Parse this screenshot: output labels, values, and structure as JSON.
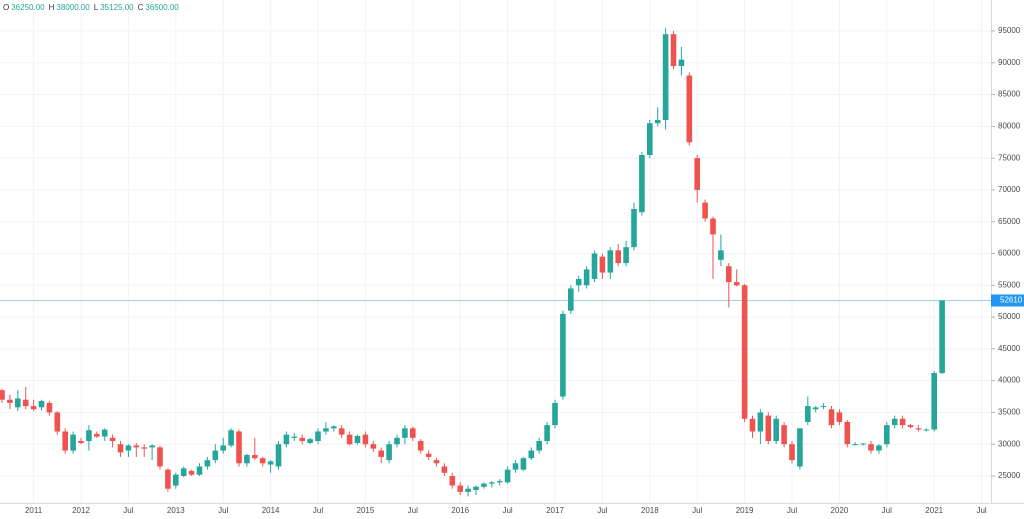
{
  "chart_data": {
    "type": "candlestick",
    "header": [
      {
        "key": "O",
        "value": "36250.00"
      },
      {
        "key": "H",
        "value": "38000.00"
      },
      {
        "key": "L",
        "value": "35125.00"
      },
      {
        "key": "C",
        "value": "36500.00"
      }
    ],
    "categories": [
      null,
      null,
      null,
      null,
      "2011",
      null,
      null,
      null,
      null,
      null,
      "2012",
      null,
      null,
      null,
      null,
      null,
      "Jul",
      null,
      null,
      null,
      null,
      null,
      "2013",
      null,
      null,
      null,
      null,
      null,
      "Jul",
      null,
      null,
      null,
      null,
      null,
      "2014",
      null,
      null,
      null,
      null,
      null,
      "Jul",
      null,
      null,
      null,
      null,
      null,
      "2015",
      null,
      null,
      null,
      null,
      null,
      "Jul",
      null,
      null,
      null,
      null,
      null,
      "2016",
      null,
      null,
      null,
      null,
      null,
      "Jul",
      null,
      null,
      null,
      null,
      null,
      "2017",
      null,
      null,
      null,
      null,
      null,
      "Jul",
      null,
      null,
      null,
      null,
      null,
      "2018",
      null,
      null,
      null,
      null,
      null,
      "Jul",
      null,
      null,
      null,
      null,
      null,
      "2019",
      null,
      null,
      null,
      null,
      null,
      "Jul",
      null,
      null,
      null,
      null,
      null,
      "2020",
      null,
      null,
      null,
      null,
      null,
      "Jul",
      null,
      null,
      null,
      null,
      null,
      "2021",
      null,
      null,
      null,
      null,
      null,
      "Jul"
    ],
    "open": [
      38500,
      37000,
      35800,
      37000,
      36000,
      35800,
      36500,
      35000,
      32000,
      29000,
      30500,
      30500,
      31600,
      31200,
      31000,
      30000,
      29000,
      29800,
      29500,
      29500,
      29500,
      26000,
      23500,
      25000,
      25800,
      25200,
      26500,
      27500,
      29000,
      29800,
      32000,
      27000,
      28300,
      27800,
      26800,
      26500,
      30000,
      31000,
      31000,
      30200,
      30500,
      32000,
      32500,
      32500,
      31500,
      30200,
      31500,
      30000,
      29000,
      27500,
      30000,
      31000,
      32500,
      30500,
      28500,
      27500,
      26500,
      25000,
      23500,
      22500,
      22800,
      23300,
      23800,
      24000,
      24000,
      26000,
      26000,
      27800,
      29000,
      30500,
      33000,
      37500,
      51000,
      55000,
      55000,
      56000,
      59500,
      57000,
      60500,
      58500,
      61000,
      66500,
      75500,
      80500,
      81000,
      94500,
      89500,
      88000,
      75000,
      68000,
      65500,
      59000,
      58000,
      55500,
      55000,
      34000,
      32000,
      34500,
      30500,
      33000,
      30000,
      26500,
      33500,
      35500,
      36000,
      35500,
      35000,
      33500,
      30000,
      30000,
      30000,
      29000,
      30000,
      33000,
      34000,
      33000,
      32500,
      32300,
      32300,
      41200,
      null,
      null,
      null,
      null,
      null
    ],
    "high": [
      38700,
      37800,
      38500,
      39000,
      37000,
      37000,
      36800,
      35200,
      32500,
      32000,
      31000,
      33000,
      32000,
      32500,
      31500,
      30500,
      30000,
      30200,
      30000,
      30000,
      29800,
      26200,
      25500,
      26500,
      26000,
      27000,
      28000,
      30000,
      31000,
      32500,
      32300,
      28500,
      31000,
      28000,
      27500,
      30500,
      32000,
      31800,
      31500,
      31000,
      32500,
      33500,
      33000,
      33000,
      32000,
      31500,
      32000,
      30500,
      29500,
      30500,
      31500,
      33000,
      32800,
      30800,
      29000,
      27800,
      27000,
      25500,
      24000,
      23500,
      23500,
      24000,
      24200,
      24500,
      26500,
      27500,
      28000,
      29500,
      31000,
      33500,
      37000,
      51000,
      55000,
      56500,
      58000,
      60500,
      60000,
      61000,
      61500,
      62000,
      68000,
      76000,
      81000,
      83000,
      95500,
      95000,
      92500,
      88500,
      75500,
      68500,
      65800,
      63000,
      58500,
      57500,
      55200,
      34500,
      35500,
      35000,
      34500,
      33500,
      30500,
      32500,
      37500,
      36000,
      36500,
      36000,
      35500,
      33800,
      30300,
      30200,
      30500,
      30000,
      33500,
      34500,
      34500,
      33200,
      33000,
      32500,
      41500,
      52610,
      null,
      null,
      null,
      null,
      null
    ],
    "low": [
      36500,
      35500,
      35200,
      35500,
      35200,
      35300,
      34500,
      31500,
      28500,
      28500,
      30000,
      29000,
      31000,
      30500,
      29500,
      28000,
      28000,
      28000,
      28000,
      27500,
      26000,
      22500,
      23000,
      24800,
      25000,
      25000,
      26000,
      27000,
      28500,
      29500,
      26500,
      26500,
      27500,
      26500,
      25500,
      26000,
      29500,
      30500,
      30000,
      30000,
      30000,
      31500,
      32000,
      31000,
      29800,
      30000,
      29500,
      28800,
      27000,
      27000,
      29500,
      30000,
      30500,
      28500,
      27500,
      26500,
      25000,
      23000,
      22000,
      21800,
      22000,
      23000,
      23200,
      23500,
      23800,
      25500,
      25800,
      27500,
      28500,
      30000,
      32500,
      37000,
      50500,
      54000,
      54500,
      55500,
      56000,
      56000,
      58000,
      58000,
      60500,
      66000,
      75000,
      80000,
      79500,
      89000,
      88000,
      77000,
      68000,
      65000,
      56000,
      58000,
      51500,
      54800,
      33500,
      31000,
      30000,
      30000,
      30000,
      29500,
      27000,
      26000,
      33000,
      35000,
      35500,
      32500,
      33000,
      29500,
      29800,
      29800,
      28500,
      28500,
      29500,
      32500,
      32500,
      32500,
      32000,
      32000,
      32000,
      41000,
      null,
      null,
      null,
      null,
      null
    ],
    "close": [
      37000,
      36500,
      37200,
      36000,
      35500,
      36800,
      35000,
      32000,
      29000,
      31500,
      30200,
      32200,
      31200,
      32300,
      30500,
      28700,
      29800,
      29500,
      29300,
      29800,
      26500,
      23000,
      25200,
      26200,
      25200,
      26500,
      27500,
      29000,
      29800,
      32200,
      27000,
      28300,
      27800,
      27000,
      27300,
      30000,
      31500,
      31200,
      30500,
      30800,
      32000,
      32500,
      32800,
      31500,
      30000,
      31300,
      30000,
      29300,
      28000,
      30000,
      31000,
      32500,
      31000,
      29000,
      28000,
      27000,
      25500,
      23500,
      22500,
      23000,
      23300,
      23800,
      24000,
      24200,
      26000,
      27000,
      27800,
      29000,
      30500,
      33000,
      36500,
      50500,
      54500,
      56000,
      57500,
      60000,
      57000,
      60500,
      58500,
      61000,
      67000,
      75500,
      80500,
      81000,
      94500,
      89500,
      90500,
      77500,
      70000,
      65500,
      63000,
      60500,
      55500,
      55000,
      34000,
      32000,
      35000,
      30500,
      34000,
      30000,
      27500,
      32500,
      36000,
      35800,
      36000,
      33000,
      33500,
      30000,
      30000,
      30100,
      29000,
      29800,
      33000,
      34000,
      33000,
      32700,
      32300,
      32300,
      41200,
      52610,
      null,
      null,
      null,
      null,
      null
    ],
    "up_color": "#26a69a",
    "down_color": "#ef5350",
    "last_price": 52610,
    "last_price_color": "#2196f3",
    "ylim": [
      20750,
      99880
    ],
    "yticks": [
      25000,
      30000,
      35000,
      40000,
      45000,
      50000,
      55000,
      60000,
      65000,
      70000,
      75000,
      80000,
      85000,
      90000,
      95000
    ],
    "grid": true
  }
}
